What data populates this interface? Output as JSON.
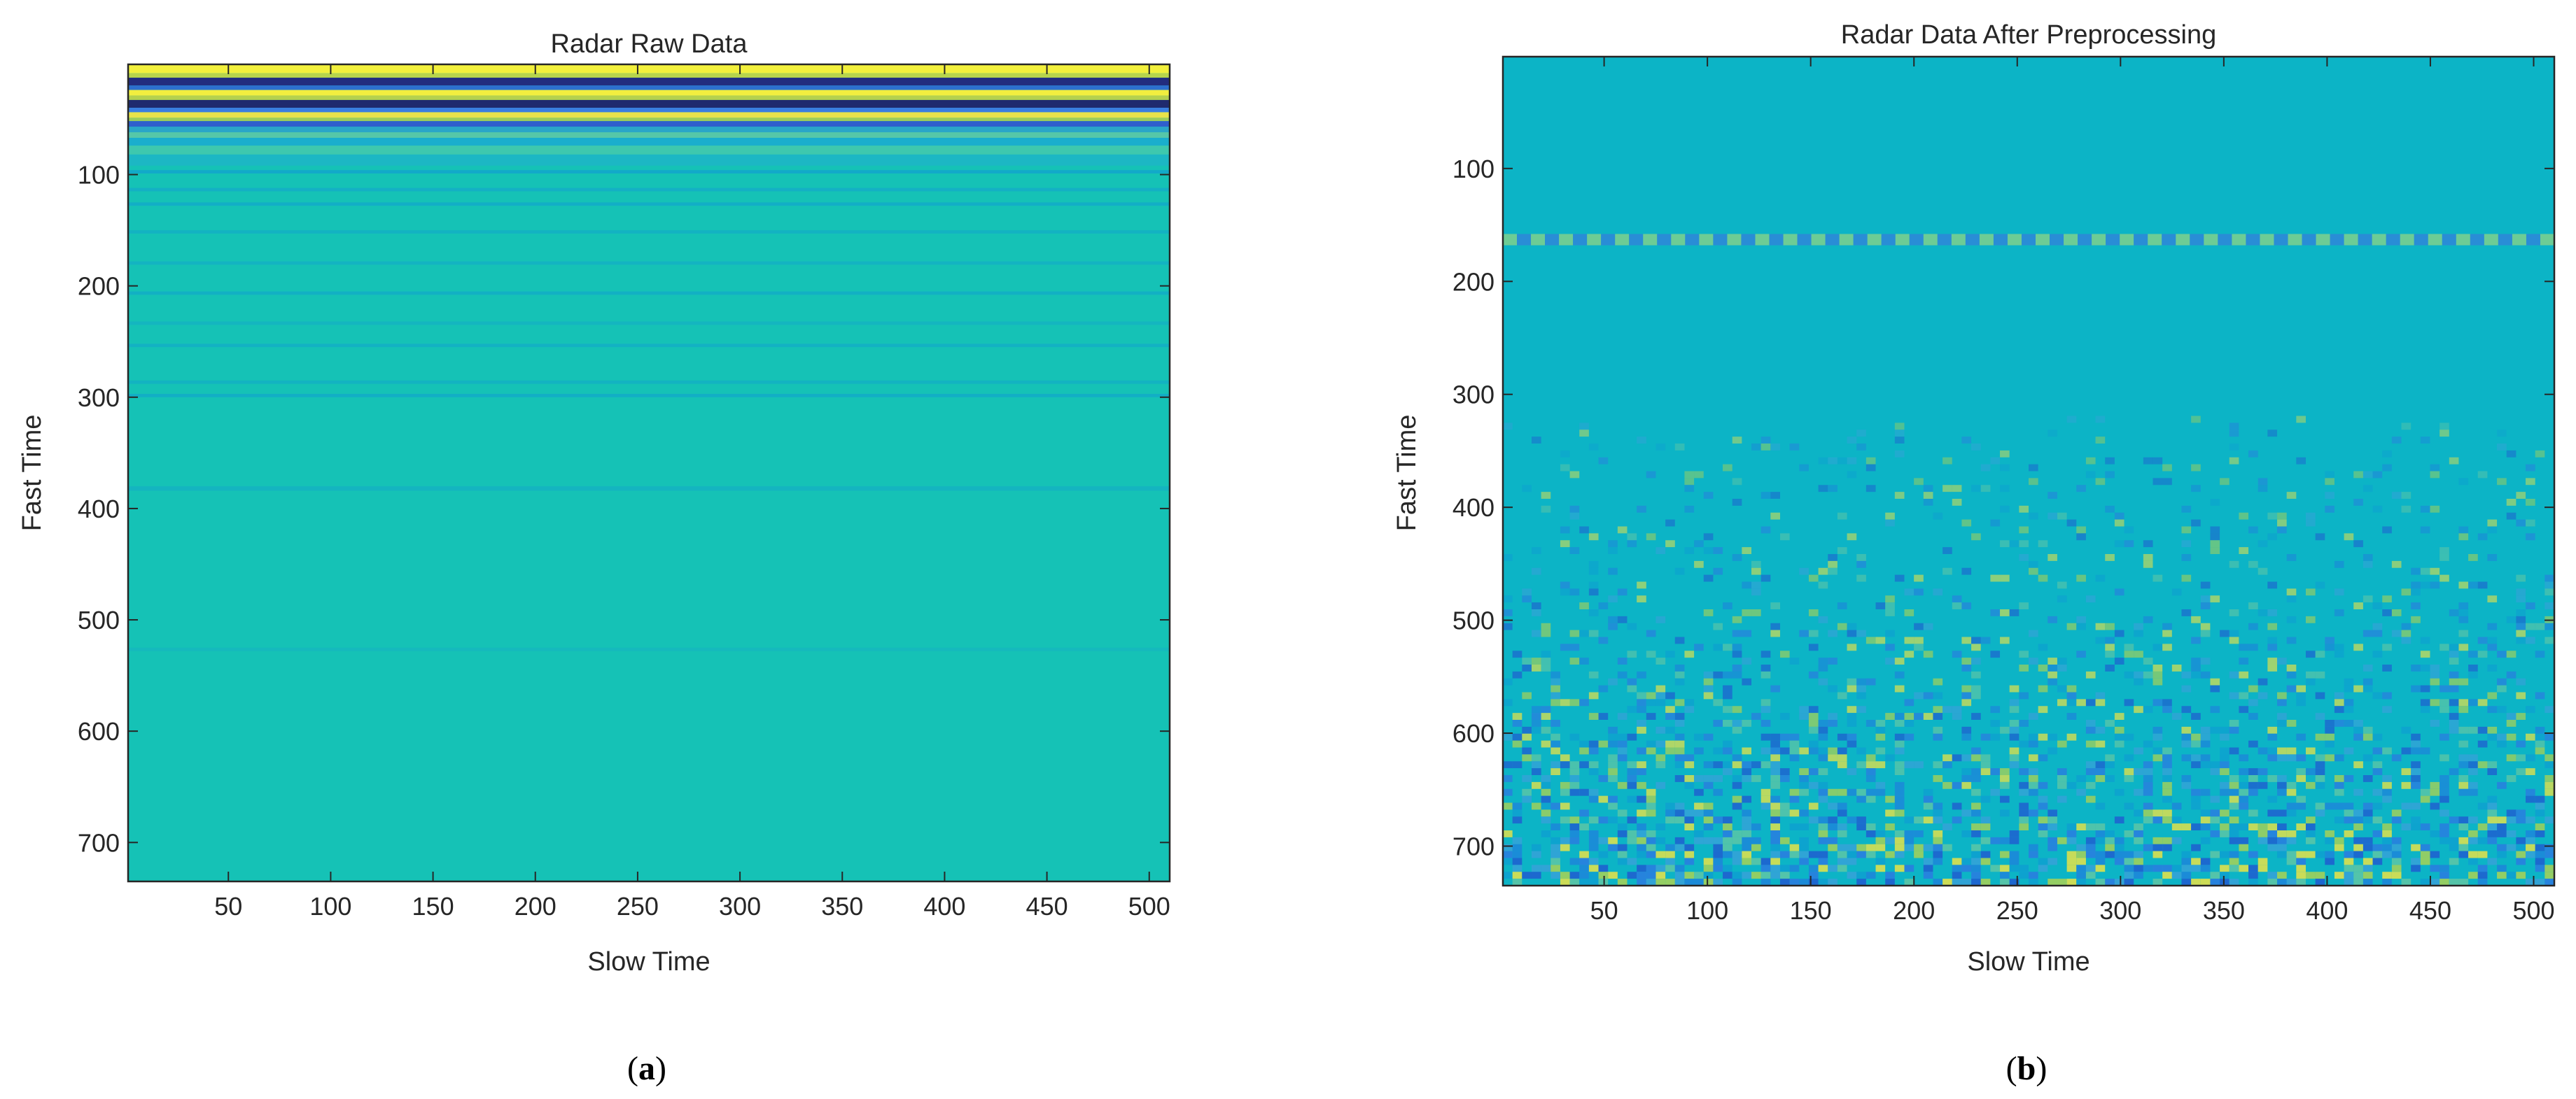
{
  "chart_data": [
    {
      "type": "heatmap",
      "title": "Radar Raw Data",
      "xlabel": "Slow Time",
      "ylabel": "Fast Time",
      "xlim": [
        1,
        510
      ],
      "ylim": [
        1,
        735
      ],
      "y_reversed": true,
      "colormap": "parula",
      "xticks": [
        50,
        100,
        150,
        200,
        250,
        300,
        350,
        400,
        450,
        500
      ],
      "yticks": [
        100,
        200,
        300,
        400,
        500,
        600,
        700
      ],
      "background_color": "#15c2b6",
      "bands": [
        {
          "y": [
            1,
            9
          ],
          "color": "#f2f03c"
        },
        {
          "y": [
            9,
            13
          ],
          "color": "#b7d44c"
        },
        {
          "y": [
            13,
            20
          ],
          "color": "#222c7e"
        },
        {
          "y": [
            20,
            24
          ],
          "color": "#2d6fce"
        },
        {
          "y": [
            24,
            29
          ],
          "color": "#f2ee3f"
        },
        {
          "y": [
            29,
            33
          ],
          "color": "#b5d14e"
        },
        {
          "y": [
            33,
            40
          ],
          "color": "#1f2a6e"
        },
        {
          "y": [
            40,
            44
          ],
          "color": "#3a7ee0"
        },
        {
          "y": [
            44,
            49
          ],
          "color": "#e8e34a"
        },
        {
          "y": [
            49,
            52
          ],
          "color": "#9ccd5a"
        },
        {
          "y": [
            52,
            57
          ],
          "color": "#2f5fcc"
        },
        {
          "y": [
            57,
            62
          ],
          "color": "#2aa6c8"
        },
        {
          "y": [
            62,
            67
          ],
          "color": "#56c7a8"
        },
        {
          "y": [
            67,
            74
          ],
          "color": "#1aaecd"
        },
        {
          "y": [
            74,
            82
          ],
          "color": "#3ec8ae"
        },
        {
          "y": [
            82,
            92
          ],
          "color": "#1cb7c4"
        },
        {
          "y": [
            96,
            99
          ],
          "color": "#12a9c9"
        },
        {
          "y": [
            112,
            115
          ],
          "color": "#14b0c4"
        },
        {
          "y": [
            125,
            128
          ],
          "color": "#12aec6"
        },
        {
          "y": [
            150,
            153
          ],
          "color": "#13b2c2"
        },
        {
          "y": [
            178,
            181
          ],
          "color": "#13b3c2"
        },
        {
          "y": [
            205,
            208
          ],
          "color": "#12b0c4"
        },
        {
          "y": [
            232,
            235
          ],
          "color": "#14b5c0"
        },
        {
          "y": [
            252,
            255
          ],
          "color": "#13b1c3"
        },
        {
          "y": [
            285,
            288
          ],
          "color": "#13b3c1"
        },
        {
          "y": [
            297,
            300
          ],
          "color": "#12aec5"
        },
        {
          "y": [
            380,
            384
          ],
          "color": "#14b4c0"
        },
        {
          "y": [
            525,
            528
          ],
          "color": "#15b9bd"
        }
      ],
      "caption": "a"
    },
    {
      "type": "heatmap",
      "title": "Radar Data After Preprocessing",
      "xlabel": "Slow Time",
      "ylabel": "Fast Time",
      "xlim": [
        1,
        510
      ],
      "ylim": [
        1,
        735
      ],
      "y_reversed": true,
      "colormap": "parula",
      "xticks": [
        50,
        100,
        150,
        200,
        250,
        300,
        350,
        400,
        450,
        500
      ],
      "yticks": [
        100,
        200,
        300,
        400,
        500,
        600,
        700
      ],
      "background_color": "#0cb4c6",
      "bright_band_y": [
        158,
        168
      ],
      "noise_onset_y": 320,
      "caption": "b"
    }
  ]
}
